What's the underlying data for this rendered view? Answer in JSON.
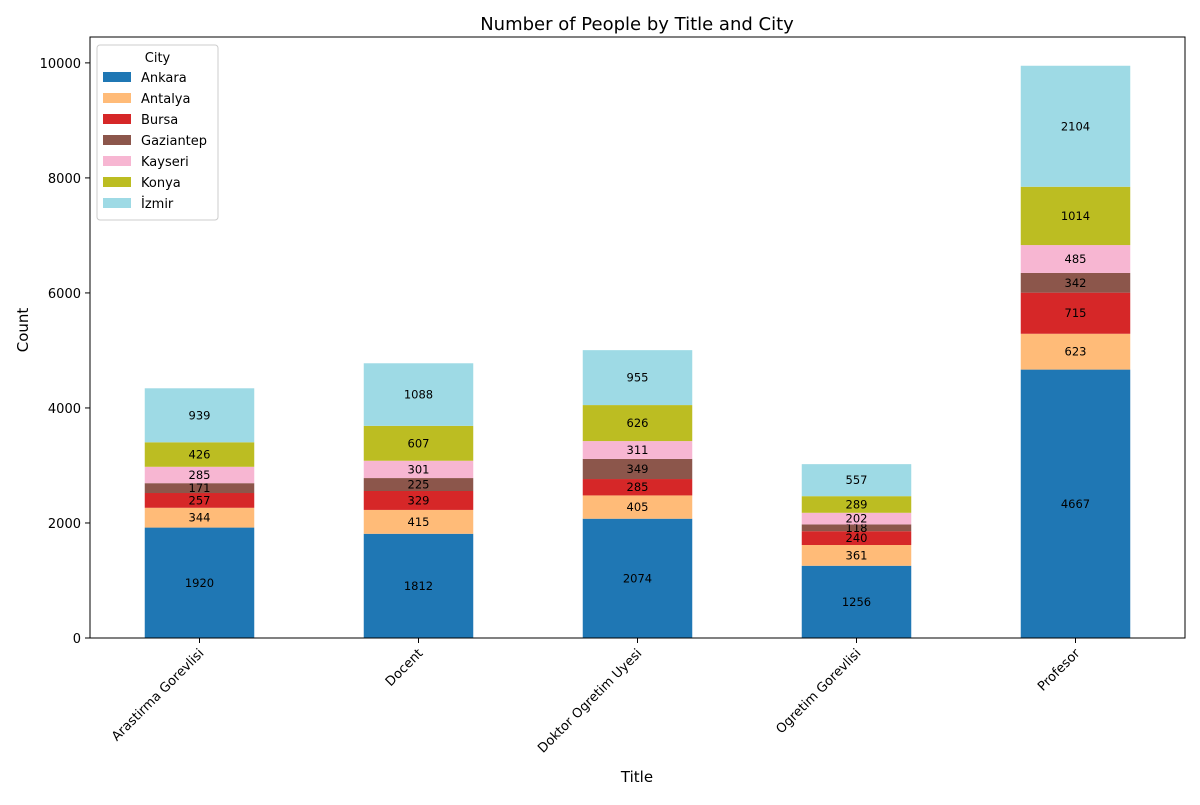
{
  "chart_data": {
    "type": "bar",
    "stacked": true,
    "title": "Number of People by Title and City",
    "xlabel": "Title",
    "ylabel": "Count",
    "ylim": [
      0,
      10450
    ],
    "yticks": [
      0,
      2000,
      4000,
      6000,
      8000,
      10000
    ],
    "legend_title": "City",
    "legend_position": "top-left",
    "grid": false,
    "categories": [
      "Arastirma Gorevlisi",
      "Docent",
      "Doktor Ogretim Uyesi",
      "Ogretim Gorevlisi",
      "Profesor"
    ],
    "series": [
      {
        "name": "Ankara",
        "color": "#1f77b4",
        "values": [
          1920,
          1812,
          2074,
          1256,
          4667
        ]
      },
      {
        "name": "Antalya",
        "color": "#ffbb78",
        "values": [
          344,
          415,
          405,
          361,
          623
        ]
      },
      {
        "name": "Bursa",
        "color": "#d62728",
        "values": [
          257,
          329,
          285,
          240,
          715
        ]
      },
      {
        "name": "Gaziantep",
        "color": "#8c564b",
        "values": [
          171,
          225,
          349,
          118,
          342
        ]
      },
      {
        "name": "Kayseri",
        "color": "#f7b6d2",
        "values": [
          285,
          301,
          311,
          202,
          485
        ]
      },
      {
        "name": "Konya",
        "color": "#bcbd22",
        "values": [
          426,
          607,
          626,
          289,
          1014
        ]
      },
      {
        "name": "İzmir",
        "color": "#9edae5",
        "values": [
          939,
          1088,
          955,
          557,
          2104
        ]
      }
    ]
  }
}
